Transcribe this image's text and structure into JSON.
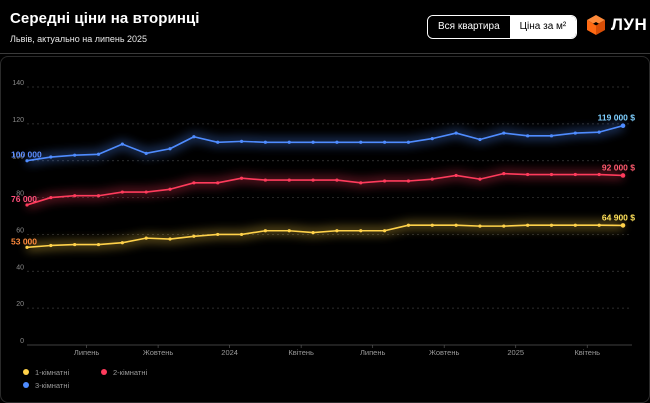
{
  "header": {
    "title": "Середні ціни на вторинці",
    "subtitle": "Львів, актуально на липень 2025",
    "toggle": [
      {
        "label": "Вся квартира",
        "active": true
      },
      {
        "label": "Ціна за м²",
        "active": false
      }
    ],
    "brand_name": "ЛУН",
    "brand_icon": "cube-logo-icon",
    "brand_color": "#ff6a13"
  },
  "chart_data": {
    "type": "line",
    "title": "Середні ціни на вторинці",
    "xlabel": "",
    "ylabel": "",
    "ylim": [
      0,
      140
    ],
    "yticks": [
      0,
      20,
      40,
      60,
      80,
      100,
      120,
      140
    ],
    "grid": true,
    "xtick_labels": [
      {
        "i": 2.5,
        "label": "Липень"
      },
      {
        "i": 5.5,
        "label": "Жовтень"
      },
      {
        "i": 8.5,
        "label": "2024"
      },
      {
        "i": 11.5,
        "label": "Квітень"
      },
      {
        "i": 14.5,
        "label": "Липень"
      },
      {
        "i": 17.5,
        "label": "Жовтень"
      },
      {
        "i": 20.5,
        "label": "2025"
      },
      {
        "i": 23.5,
        "label": "Квітень"
      }
    ],
    "x_count": 26,
    "legend_position": "bottom-left",
    "series": [
      {
        "name": "1-кімнатні",
        "color": "#ffd24a",
        "start_label": "53 000",
        "start_color": "#ff8a3d",
        "end_label": "64 900 $",
        "end_color": "#ffe15a",
        "values": [
          53,
          54,
          54.5,
          54.5,
          55.5,
          58,
          57.5,
          59,
          60,
          60,
          62,
          62,
          61,
          62,
          62,
          62,
          65,
          65,
          65,
          64.5,
          64.5,
          65,
          65,
          65,
          65,
          64.9
        ]
      },
      {
        "name": "2-кімнатні",
        "color": "#ff3b5c",
        "start_label": "76 000",
        "start_color": "#ff4f7a",
        "end_label": "92 000 $",
        "end_color": "#ff5a6e",
        "values": [
          76,
          80,
          81,
          81,
          83,
          83,
          84.5,
          88,
          88,
          90.5,
          89.5,
          89.5,
          89.5,
          89.5,
          88,
          89,
          89,
          90,
          92,
          90,
          93,
          92.5,
          92.5,
          92.5,
          92.5,
          92
        ]
      },
      {
        "name": "3-кімнатні",
        "color": "#4f8cff",
        "start_label": "100 000",
        "start_color": "#5a8cff",
        "end_label": "119 000 $",
        "end_color": "#7fd0ff",
        "values": [
          100,
          102,
          103,
          103.5,
          109,
          104,
          106.5,
          113,
          110,
          110.5,
          110,
          110,
          110,
          110,
          110,
          110,
          110,
          112,
          115,
          111.5,
          115,
          113.5,
          113.5,
          115,
          115.5,
          119
        ]
      }
    ]
  }
}
